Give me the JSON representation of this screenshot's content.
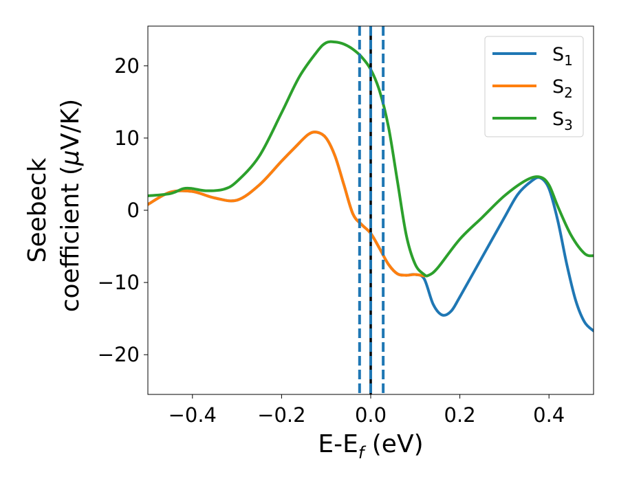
{
  "chart_data": {
    "type": "line",
    "xlabel": {
      "main": "E-E",
      "sub": "f",
      "unit": " (eV)"
    },
    "ylabel": {
      "line1": "Seebeck",
      "line2": "coefficient  (",
      "mu": "μ",
      "unit": "V/K)"
    },
    "xlim": [
      -0.5,
      0.5
    ],
    "ylim": [
      -25.5,
      25.5
    ],
    "x_ticks": [
      -0.4,
      -0.2,
      0.0,
      0.2,
      0.4
    ],
    "x_tick_labels": [
      "−0.4",
      "−0.2",
      "0.0",
      "0.2",
      "0.4"
    ],
    "y_ticks": [
      -20,
      -10,
      0,
      10,
      20
    ],
    "y_tick_labels": [
      "−20",
      "−10",
      "0",
      "10",
      "20"
    ],
    "grid": false,
    "legend_position": "top-right",
    "colors": {
      "S1": "#1f77b4",
      "S2": "#ff7f0e",
      "S3": "#2ca02c",
      "fermi": "#000000",
      "window": "#1f77b4"
    },
    "vertical_lines": [
      {
        "x": 0.0,
        "style": "solid",
        "color": "#000000"
      },
      {
        "x": -0.025,
        "style": "dashed",
        "color": "#1f77b4"
      },
      {
        "x": 0.0,
        "style": "dashed",
        "color": "#1f77b4"
      },
      {
        "x": 0.028,
        "style": "dashed",
        "color": "#1f77b4"
      }
    ],
    "series": [
      {
        "name": "S",
        "sub": "1",
        "color": "#1f77b4",
        "x": [
          -0.5,
          -0.45,
          -0.4,
          -0.35,
          -0.3,
          -0.25,
          -0.2,
          -0.17,
          -0.14,
          -0.12,
          -0.1,
          -0.08,
          -0.06,
          -0.04,
          -0.02,
          0.0,
          0.02,
          0.04,
          0.06,
          0.08,
          0.1,
          0.12,
          0.14,
          0.16,
          0.18,
          0.2,
          0.25,
          0.3,
          0.33,
          0.36,
          0.38,
          0.4,
          0.42,
          0.44,
          0.46,
          0.48,
          0.5
        ],
        "y": [
          0.8,
          2.5,
          2.6,
          1.7,
          1.4,
          3.5,
          6.8,
          8.7,
          10.5,
          10.8,
          10.0,
          7.5,
          3.5,
          -0.5,
          -2.0,
          -3.2,
          -5.3,
          -7.5,
          -8.8,
          -9.0,
          -8.9,
          -9.5,
          -13.0,
          -14.5,
          -14.0,
          -12.0,
          -6.5,
          -1.0,
          2.2,
          4.0,
          4.5,
          3.0,
          -1.5,
          -7.5,
          -12.5,
          -15.5,
          -16.7
        ]
      },
      {
        "name": "S",
        "sub": "2",
        "color": "#ff7f0e",
        "x": [
          -0.5,
          -0.45,
          -0.4,
          -0.35,
          -0.3,
          -0.25,
          -0.2,
          -0.17,
          -0.14,
          -0.12,
          -0.1,
          -0.08,
          -0.06,
          -0.04,
          -0.02,
          0.0,
          0.02,
          0.04,
          0.06,
          0.08,
          0.1,
          0.12
        ],
        "y": [
          0.8,
          2.5,
          2.6,
          1.7,
          1.4,
          3.5,
          6.8,
          8.7,
          10.5,
          10.8,
          10.0,
          7.5,
          3.5,
          -0.5,
          -2.0,
          -3.2,
          -5.3,
          -7.5,
          -8.8,
          -9.0,
          -8.9,
          -9.1
        ]
      },
      {
        "name": "S",
        "sub": "3",
        "color": "#2ca02c",
        "x": [
          -0.5,
          -0.45,
          -0.42,
          -0.4,
          -0.37,
          -0.33,
          -0.3,
          -0.25,
          -0.2,
          -0.16,
          -0.12,
          -0.1,
          -0.08,
          -0.06,
          -0.04,
          -0.02,
          0.0,
          0.02,
          0.04,
          0.06,
          0.08,
          0.1,
          0.12,
          0.13,
          0.15,
          0.2,
          0.25,
          0.3,
          0.35,
          0.38,
          0.4,
          0.42,
          0.45,
          0.48,
          0.5
        ],
        "y": [
          2.0,
          2.3,
          3.0,
          3.0,
          2.7,
          2.9,
          4.0,
          7.5,
          13.5,
          18.5,
          22.0,
          23.2,
          23.3,
          23.0,
          22.3,
          21.2,
          19.5,
          16.5,
          11.5,
          4.0,
          -3.5,
          -7.5,
          -8.9,
          -9.0,
          -8.0,
          -4.0,
          -1.0,
          2.0,
          4.2,
          4.6,
          3.5,
          0.5,
          -3.5,
          -6.0,
          -6.3
        ]
      }
    ]
  }
}
